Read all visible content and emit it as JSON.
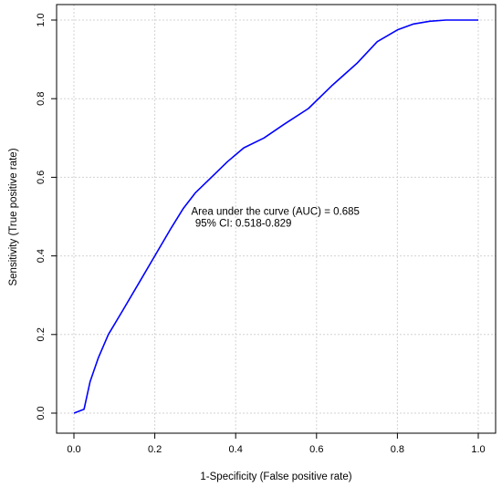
{
  "chart_data": {
    "type": "line",
    "title": "",
    "xlabel": "1-Specificity (False positive rate)",
    "ylabel": "Sensitivity (True positive rate)",
    "xlim": [
      0,
      1
    ],
    "ylim": [
      0,
      1
    ],
    "xticks": [
      "0.0",
      "0.2",
      "0.4",
      "0.6",
      "0.8",
      "1.0"
    ],
    "yticks": [
      "0.0",
      "0.2",
      "0.4",
      "0.6",
      "0.8",
      "1.0"
    ],
    "grid": true,
    "series": [
      {
        "color": "#0000ff",
        "x": [
          0.0,
          0.025,
          0.04,
          0.06,
          0.085,
          0.12,
          0.16,
          0.2,
          0.24,
          0.27,
          0.3,
          0.34,
          0.38,
          0.42,
          0.47,
          0.52,
          0.58,
          0.64,
          0.7,
          0.75,
          0.8,
          0.84,
          0.88,
          0.92,
          0.96,
          1.0
        ],
        "y": [
          0.0,
          0.01,
          0.08,
          0.14,
          0.2,
          0.26,
          0.33,
          0.4,
          0.47,
          0.52,
          0.56,
          0.6,
          0.64,
          0.675,
          0.7,
          0.735,
          0.775,
          0.835,
          0.89,
          0.945,
          0.975,
          0.99,
          0.997,
          1.0,
          1.0,
          1.0
        ]
      }
    ],
    "annotations": [
      {
        "text": "Area under the curve (AUC) = 0.685",
        "x": 0.29,
        "y": 0.505
      },
      {
        "text": "95% CI: 0.518-0.829",
        "x": 0.3,
        "y": 0.475
      }
    ]
  }
}
